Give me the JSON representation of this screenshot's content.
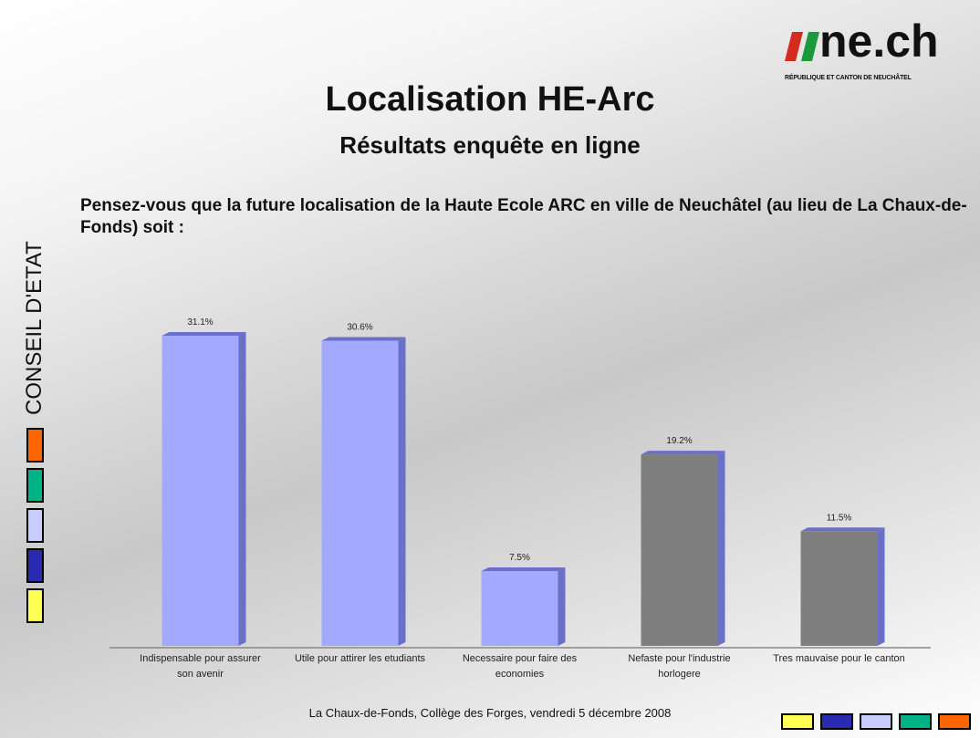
{
  "header": {
    "logo": "ne.ch",
    "logo_caption": "RÉPUBLIQUE ET CANTON DE NEUCHÂTEL",
    "side": "CONSEIL D'ETAT",
    "title": "Localisation HE-Arc",
    "subtitle": "Résultats enquête en ligne"
  },
  "chart_data": {
    "type": "bar",
    "title": "Pensez-vous que la future localisation de la Haute Ecole ARC en ville de Neuchâtel (au lieu de La Chaux-de-Fonds) soit :",
    "categories": [
      "Indispensable pour assurer son avenir",
      "Utile pour attirer les etudiants",
      "Necessaire pour faire des economies",
      "Nefaste pour l'industrie horlogere",
      "Tres mauvaise pour le canton"
    ],
    "values": [
      31.1,
      30.6,
      7.5,
      19.2,
      11.5
    ],
    "value_labels": [
      "31.1%",
      "30.6%",
      "7.5%",
      "19.2%",
      "11.5%"
    ],
    "colors": [
      "#a3a9ff",
      "#a3a9ff",
      "#a3a9ff",
      "#7f7f7f",
      "#7f7f7f"
    ]
  },
  "footer": "La Chaux-de-Fonds, Collège des Forges, vendredi 5 décembre 2008"
}
